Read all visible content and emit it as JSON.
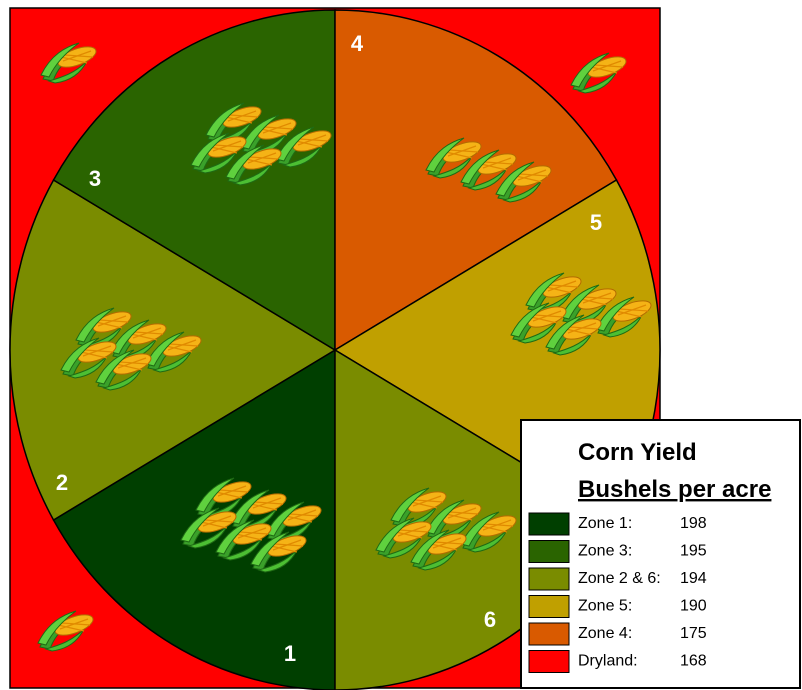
{
  "map": {
    "background_color": "#ff0000",
    "zones": [
      {
        "label": "1",
        "color": "#003f00"
      },
      {
        "label": "2",
        "color": "#7a8c00"
      },
      {
        "label": "3",
        "color": "#2a6400"
      },
      {
        "label": "4",
        "color": "#d95a00"
      },
      {
        "label": "5",
        "color": "#c0a000"
      },
      {
        "label": "6",
        "color": "#7a8c00"
      }
    ]
  },
  "legend": {
    "title": "Corn Yield",
    "subtitle": "Bushels per acre",
    "rows": [
      {
        "label": "Zone 1:",
        "value": 198,
        "color": "#003f00"
      },
      {
        "label": "Zone 3:",
        "value": 195,
        "color": "#2a6400"
      },
      {
        "label": "Zone 2 & 6:",
        "value": 194,
        "color": "#7a8c00"
      },
      {
        "label": "Zone 5:",
        "value": 190,
        "color": "#c0a000"
      },
      {
        "label": "Zone 4:",
        "value": 175,
        "color": "#d95a00"
      },
      {
        "label": "Dryland:",
        "value": 168,
        "color": "#ff0000"
      }
    ]
  }
}
